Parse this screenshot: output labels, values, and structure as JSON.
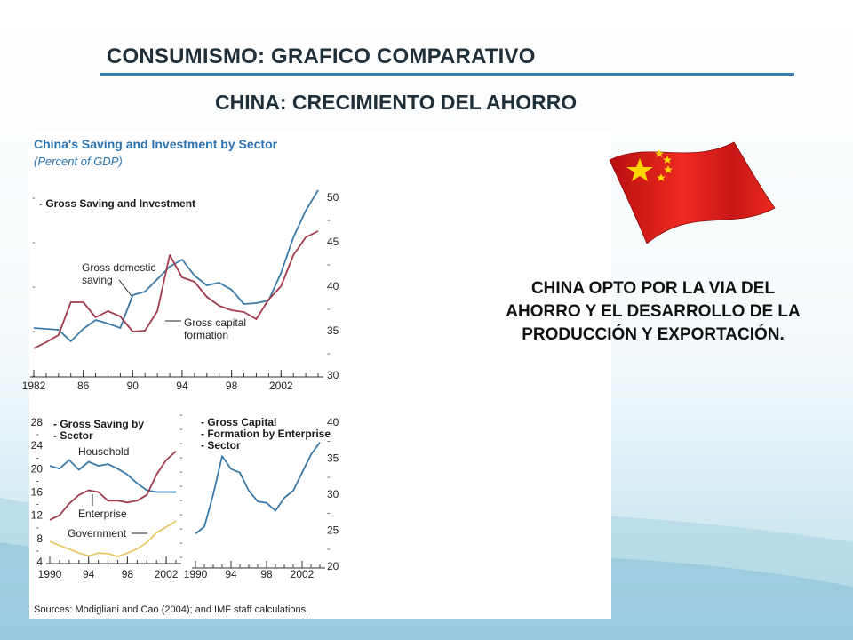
{
  "slide": {
    "title": "CONSUMISMO: GRAFICO COMPARATIVO",
    "subtitle": "CHINA: CRECIMIENTO DEL AHORRO",
    "conclusion": "CHINA OPTO POR LA VIA DEL AHORRO Y EL DESARROLLO DE LA PRODUCCIÓN Y EXPORTACIÓN.",
    "colors": {
      "title_rule": "#3a7fb4",
      "background": "#cfe9f1",
      "flag_red": "#d61a1a",
      "flag_star": "#ffd400"
    },
    "icons": [
      "china-flag-icon"
    ]
  },
  "figure": {
    "title": "China's Saving and Investment by Sector",
    "subtitle": "(Percent of GDP)",
    "source": "Sources: Modigliani and Cao (2004); and IMF staff calculations."
  },
  "chart_data": [
    {
      "type": "line",
      "title": "Gross Saving and Investment",
      "x": [
        1982,
        1983,
        1984,
        1985,
        1986,
        1987,
        1988,
        1989,
        1990,
        1991,
        1992,
        1993,
        1994,
        1995,
        1996,
        1997,
        1998,
        1999,
        2000,
        2001,
        2002,
        2003,
        2004,
        2005
      ],
      "xticks": [
        "1982",
        "86",
        "90",
        "94",
        "98",
        "2002"
      ],
      "ylim": [
        30,
        50
      ],
      "yticks": [
        30,
        35,
        40,
        45,
        50
      ],
      "y_axis_side": "right",
      "series": [
        {
          "name": "Gross domestic saving",
          "color": "#3b7aa8",
          "values": [
            35.3,
            35.2,
            35.1,
            33.8,
            35.2,
            36.2,
            35.8,
            35.3,
            39.0,
            39.4,
            40.8,
            42.2,
            43.0,
            41.2,
            40.1,
            40.4,
            39.6,
            38.0,
            38.1,
            38.4,
            41.5,
            45.5,
            48.5,
            50.8
          ]
        },
        {
          "name": "Gross capital formation",
          "color": "#a33b4e",
          "values": [
            33.0,
            33.7,
            34.5,
            38.2,
            38.2,
            36.5,
            37.2,
            36.6,
            34.9,
            35.0,
            37.2,
            43.5,
            41.0,
            40.5,
            38.8,
            37.8,
            37.3,
            37.1,
            36.3,
            38.5,
            40.0,
            43.5,
            45.5,
            46.2
          ]
        }
      ],
      "annotations": [
        "Gross domestic saving",
        "Gross capital formation"
      ]
    },
    {
      "type": "line",
      "title": "Gross Saving by Sector",
      "x": [
        1990,
        1991,
        1992,
        1993,
        1994,
        1995,
        1996,
        1997,
        1998,
        1999,
        2000,
        2001,
        2002,
        2003
      ],
      "xticks": [
        "1990",
        "94",
        "98",
        "2002"
      ],
      "ylim": [
        4,
        28
      ],
      "yticks": [
        4,
        8,
        12,
        16,
        20,
        24,
        28
      ],
      "y_axis_side": "left",
      "series": [
        {
          "name": "Household",
          "color": "#3b7aa8",
          "values": [
            20.5,
            20.0,
            21.5,
            19.8,
            21.2,
            20.5,
            20.8,
            20.0,
            19.0,
            17.5,
            16.3,
            16.0,
            16.0,
            16.0
          ]
        },
        {
          "name": "Enterprise",
          "color": "#a33b4e",
          "values": [
            11.2,
            12.0,
            14.0,
            15.5,
            16.3,
            16.0,
            14.5,
            14.5,
            14.2,
            14.5,
            15.5,
            19.0,
            21.5,
            23.0
          ]
        },
        {
          "name": "Government",
          "color": "#e8c867",
          "values": [
            7.5,
            6.8,
            6.2,
            5.5,
            5.0,
            5.5,
            5.4,
            4.9,
            5.5,
            6.2,
            7.3,
            9.0,
            10.0,
            11.0
          ]
        }
      ],
      "annotations": [
        "Household",
        "Enterprise",
        "Government"
      ]
    },
    {
      "type": "line",
      "title": "Gross Capital Formation by Enterprise Sector",
      "x": [
        1990,
        1991,
        1992,
        1993,
        1994,
        1995,
        1996,
        1997,
        1998,
        1999,
        2000,
        2001,
        2002,
        2003,
        2004
      ],
      "xticks": [
        "1990",
        "94",
        "98",
        "2002"
      ],
      "ylim": [
        20,
        40
      ],
      "yticks": [
        20,
        25,
        30,
        35,
        40
      ],
      "y_axis_side": "right",
      "series": [
        {
          "name": "Gross capital formation, enterprise",
          "color": "#3b7aa8",
          "values": [
            24.5,
            25.5,
            30.0,
            35.3,
            33.5,
            33.0,
            30.5,
            29.0,
            28.8,
            27.7,
            29.5,
            30.5,
            33.0,
            35.5,
            37.2
          ]
        }
      ]
    }
  ]
}
